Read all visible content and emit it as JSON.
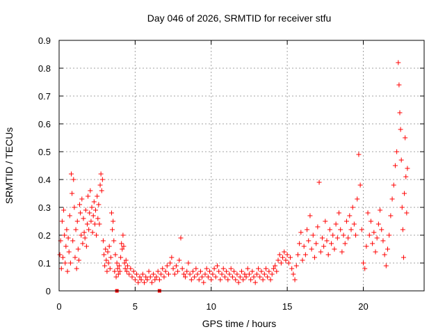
{
  "chart_data": {
    "type": "scatter",
    "title": "Day 046 of 2026, SRMTID for receiver stfu",
    "xlabel": "GPS time / hours",
    "ylabel": "SRMTID / TECUs",
    "xlim": [
      0,
      24
    ],
    "ylim": [
      0,
      0.9
    ],
    "xticks": [
      0,
      5,
      10,
      15,
      20
    ],
    "xtick_labels": [
      "0",
      "5",
      "10",
      "15",
      "20"
    ],
    "yticks": [
      0,
      0.1,
      0.2,
      0.3,
      0.4,
      0.5,
      0.6,
      0.7,
      0.8,
      0.9
    ],
    "ytick_labels": [
      "0",
      "0.1",
      "0.2",
      "0.3",
      "0.4",
      "0.5",
      "0.6",
      "0.7",
      "0.8",
      "0.9"
    ],
    "grid": true,
    "marker": "+",
    "color": "#ff0000",
    "gap_markers": [
      {
        "x": 3.8,
        "y": 0
      },
      {
        "x": 6.6,
        "y": 0
      }
    ],
    "series": [
      {
        "name": "SRMTID",
        "points": [
          [
            0.05,
            0.13
          ],
          [
            0.1,
            0.18
          ],
          [
            0.15,
            0.08
          ],
          [
            0.2,
            0.25
          ],
          [
            0.25,
            0.12
          ],
          [
            0.3,
            0.29
          ],
          [
            0.35,
            0.2
          ],
          [
            0.4,
            0.1
          ],
          [
            0.45,
            0.16
          ],
          [
            0.5,
            0.22
          ],
          [
            0.55,
            0.07
          ],
          [
            0.6,
            0.19
          ],
          [
            0.65,
            0.14
          ],
          [
            0.7,
            0.27
          ],
          [
            0.75,
            0.1
          ],
          [
            0.8,
            0.42
          ],
          [
            0.85,
            0.35
          ],
          [
            0.9,
            0.18
          ],
          [
            0.95,
            0.4
          ],
          [
            1.0,
            0.3
          ],
          [
            1.05,
            0.12
          ],
          [
            1.1,
            0.22
          ],
          [
            1.15,
            0.08
          ],
          [
            1.2,
            0.25
          ],
          [
            1.25,
            0.15
          ],
          [
            1.3,
            0.11
          ],
          [
            1.35,
            0.31
          ],
          [
            1.4,
            0.28
          ],
          [
            1.45,
            0.2
          ],
          [
            1.5,
            0.33
          ],
          [
            1.55,
            0.17
          ],
          [
            1.6,
            0.26
          ],
          [
            1.65,
            0.21
          ],
          [
            1.7,
            0.19
          ],
          [
            1.75,
            0.29
          ],
          [
            1.8,
            0.16
          ],
          [
            1.85,
            0.24
          ],
          [
            1.9,
            0.34
          ],
          [
            1.95,
            0.22
          ],
          [
            2.0,
            0.28
          ],
          [
            2.05,
            0.36
          ],
          [
            2.1,
            0.25
          ],
          [
            2.15,
            0.3
          ],
          [
            2.2,
            0.21
          ],
          [
            2.25,
            0.27
          ],
          [
            2.3,
            0.32
          ],
          [
            2.35,
            0.24
          ],
          [
            2.4,
            0.29
          ],
          [
            2.45,
            0.2
          ],
          [
            2.5,
            0.34
          ],
          [
            2.55,
            0.26
          ],
          [
            2.6,
            0.31
          ],
          [
            2.65,
            0.24
          ],
          [
            2.7,
            0.38
          ],
          [
            2.75,
            0.42
          ],
          [
            2.8,
            0.36
          ],
          [
            2.85,
            0.4
          ],
          [
            2.9,
            0.18
          ],
          [
            2.95,
            0.13
          ],
          [
            3.0,
            0.09
          ],
          [
            3.05,
            0.15
          ],
          [
            3.1,
            0.11
          ],
          [
            3.15,
            0.07
          ],
          [
            3.2,
            0.14
          ],
          [
            3.25,
            0.1
          ],
          [
            3.3,
            0.16
          ],
          [
            3.35,
            0.08
          ],
          [
            3.4,
            0.12
          ],
          [
            3.45,
            0.28
          ],
          [
            3.5,
            0.22
          ],
          [
            3.55,
            0.25
          ],
          [
            3.6,
            0.18
          ],
          [
            3.65,
            0.07
          ],
          [
            3.7,
            0.13
          ],
          [
            3.75,
            0.05
          ],
          [
            3.8,
            0.1
          ],
          [
            3.85,
            0.08
          ],
          [
            3.9,
            0.06
          ],
          [
            3.95,
            0.09
          ],
          [
            4.0,
            0.07
          ],
          [
            4.05,
            0.12
          ],
          [
            4.1,
            0.17
          ],
          [
            4.15,
            0.15
          ],
          [
            4.2,
            0.2
          ],
          [
            4.25,
            0.16
          ],
          [
            4.3,
            0.1
          ],
          [
            4.35,
            0.08
          ],
          [
            4.4,
            0.11
          ],
          [
            4.45,
            0.07
          ],
          [
            4.5,
            0.09
          ],
          [
            4.6,
            0.06
          ],
          [
            4.7,
            0.08
          ],
          [
            4.8,
            0.05
          ],
          [
            4.9,
            0.07
          ],
          [
            5.0,
            0.04
          ],
          [
            5.1,
            0.06
          ],
          [
            5.2,
            0.03
          ],
          [
            5.3,
            0.05
          ],
          [
            5.4,
            0.04
          ],
          [
            5.5,
            0.06
          ],
          [
            5.6,
            0.03
          ],
          [
            5.7,
            0.05
          ],
          [
            5.8,
            0.04
          ],
          [
            5.9,
            0.07
          ],
          [
            6.0,
            0.05
          ],
          [
            6.1,
            0.03
          ],
          [
            6.2,
            0.06
          ],
          [
            6.3,
            0.04
          ],
          [
            6.4,
            0.05
          ],
          [
            6.5,
            0.07
          ],
          [
            6.6,
            0.04
          ],
          [
            6.7,
            0.06
          ],
          [
            6.8,
            0.08
          ],
          [
            6.9,
            0.05
          ],
          [
            7.0,
            0.07
          ],
          [
            7.1,
            0.09
          ],
          [
            7.2,
            0.06
          ],
          [
            7.3,
            0.1
          ],
          [
            7.4,
            0.12
          ],
          [
            7.5,
            0.08
          ],
          [
            7.6,
            0.06
          ],
          [
            7.7,
            0.09
          ],
          [
            7.8,
            0.07
          ],
          [
            7.9,
            0.11
          ],
          [
            8.0,
            0.19
          ],
          [
            8.1,
            0.08
          ],
          [
            8.2,
            0.06
          ],
          [
            8.3,
            0.05
          ],
          [
            8.4,
            0.07
          ],
          [
            8.5,
            0.1
          ],
          [
            8.6,
            0.06
          ],
          [
            8.7,
            0.04
          ],
          [
            8.8,
            0.07
          ],
          [
            8.9,
            0.05
          ],
          [
            9.0,
            0.08
          ],
          [
            9.1,
            0.06
          ],
          [
            9.2,
            0.04
          ],
          [
            9.3,
            0.07
          ],
          [
            9.4,
            0.05
          ],
          [
            9.5,
            0.03
          ],
          [
            9.6,
            0.06
          ],
          [
            9.7,
            0.08
          ],
          [
            9.8,
            0.05
          ],
          [
            9.9,
            0.07
          ],
          [
            10.0,
            0.04
          ],
          [
            10.1,
            0.06
          ],
          [
            10.2,
            0.08
          ],
          [
            10.3,
            0.05
          ],
          [
            10.4,
            0.09
          ],
          [
            10.5,
            0.07
          ],
          [
            10.6,
            0.04
          ],
          [
            10.7,
            0.06
          ],
          [
            10.8,
            0.08
          ],
          [
            10.9,
            0.05
          ],
          [
            11.0,
            0.07
          ],
          [
            11.1,
            0.04
          ],
          [
            11.2,
            0.06
          ],
          [
            11.3,
            0.08
          ],
          [
            11.4,
            0.05
          ],
          [
            11.5,
            0.07
          ],
          [
            11.6,
            0.04
          ],
          [
            11.7,
            0.06
          ],
          [
            11.8,
            0.03
          ],
          [
            11.9,
            0.05
          ],
          [
            12.0,
            0.07
          ],
          [
            12.1,
            0.04
          ],
          [
            12.2,
            0.06
          ],
          [
            12.3,
            0.05
          ],
          [
            12.4,
            0.08
          ],
          [
            12.5,
            0.06
          ],
          [
            12.6,
            0.04
          ],
          [
            12.7,
            0.07
          ],
          [
            12.8,
            0.05
          ],
          [
            12.9,
            0.03
          ],
          [
            13.0,
            0.06
          ],
          [
            13.1,
            0.08
          ],
          [
            13.2,
            0.05
          ],
          [
            13.3,
            0.07
          ],
          [
            13.4,
            0.04
          ],
          [
            13.5,
            0.06
          ],
          [
            13.6,
            0.08
          ],
          [
            13.7,
            0.05
          ],
          [
            13.8,
            0.07
          ],
          [
            13.9,
            0.04
          ],
          [
            14.0,
            0.06
          ],
          [
            14.1,
            0.08
          ],
          [
            14.2,
            0.09
          ],
          [
            14.3,
            0.07
          ],
          [
            14.4,
            0.11
          ],
          [
            14.5,
            0.13
          ],
          [
            14.6,
            0.1
          ],
          [
            14.7,
            0.12
          ],
          [
            14.8,
            0.14
          ],
          [
            14.9,
            0.11
          ],
          [
            15.0,
            0.13
          ],
          [
            15.1,
            0.1
          ],
          [
            15.2,
            0.12
          ],
          [
            15.3,
            0.08
          ],
          [
            15.4,
            0.06
          ],
          [
            15.5,
            0.04
          ],
          [
            15.6,
            0.09
          ],
          [
            15.7,
            0.13
          ],
          [
            15.8,
            0.17
          ],
          [
            15.9,
            0.21
          ],
          [
            16.0,
            0.11
          ],
          [
            16.1,
            0.16
          ],
          [
            16.2,
            0.13
          ],
          [
            16.3,
            0.22
          ],
          [
            16.4,
            0.18
          ],
          [
            16.5,
            0.27
          ],
          [
            16.6,
            0.15
          ],
          [
            16.7,
            0.2
          ],
          [
            16.8,
            0.12
          ],
          [
            16.9,
            0.17
          ],
          [
            17.0,
            0.23
          ],
          [
            17.1,
            0.39
          ],
          [
            17.2,
            0.14
          ],
          [
            17.3,
            0.19
          ],
          [
            17.4,
            0.16
          ],
          [
            17.5,
            0.25
          ],
          [
            17.6,
            0.18
          ],
          [
            17.7,
            0.13
          ],
          [
            17.8,
            0.22
          ],
          [
            17.9,
            0.17
          ],
          [
            18.0,
            0.2
          ],
          [
            18.1,
            0.15
          ],
          [
            18.2,
            0.24
          ],
          [
            18.3,
            0.19
          ],
          [
            18.4,
            0.28
          ],
          [
            18.5,
            0.22
          ],
          [
            18.6,
            0.14
          ],
          [
            18.7,
            0.2
          ],
          [
            18.8,
            0.17
          ],
          [
            18.9,
            0.25
          ],
          [
            19.0,
            0.19
          ],
          [
            19.1,
            0.27
          ],
          [
            19.2,
            0.22
          ],
          [
            19.3,
            0.3
          ],
          [
            19.4,
            0.24
          ],
          [
            19.5,
            0.2
          ],
          [
            19.6,
            0.33
          ],
          [
            19.7,
            0.49
          ],
          [
            19.8,
            0.38
          ],
          [
            19.9,
            0.22
          ],
          [
            20.0,
            0.1
          ],
          [
            20.1,
            0.08
          ],
          [
            20.2,
            0.16
          ],
          [
            20.3,
            0.28
          ],
          [
            20.4,
            0.2
          ],
          [
            20.5,
            0.25
          ],
          [
            20.6,
            0.17
          ],
          [
            20.7,
            0.21
          ],
          [
            20.8,
            0.14
          ],
          [
            20.9,
            0.19
          ],
          [
            21.0,
            0.24
          ],
          [
            21.1,
            0.29
          ],
          [
            21.2,
            0.22
          ],
          [
            21.3,
            0.18
          ],
          [
            21.4,
            0.13
          ],
          [
            21.5,
            0.09
          ],
          [
            21.6,
            0.15
          ],
          [
            21.7,
            0.2
          ],
          [
            21.8,
            0.27
          ],
          [
            21.9,
            0.33
          ],
          [
            22.0,
            0.38
          ],
          [
            22.1,
            0.45
          ],
          [
            22.2,
            0.5
          ],
          [
            22.3,
            0.82
          ],
          [
            22.35,
            0.74
          ],
          [
            22.4,
            0.64
          ],
          [
            22.45,
            0.58
          ],
          [
            22.5,
            0.47
          ],
          [
            22.55,
            0.3
          ],
          [
            22.6,
            0.22
          ],
          [
            22.65,
            0.12
          ],
          [
            22.7,
            0.35
          ],
          [
            22.75,
            0.55
          ],
          [
            22.8,
            0.41
          ],
          [
            22.85,
            0.28
          ],
          [
            22.9,
            0.44
          ]
        ]
      }
    ]
  }
}
